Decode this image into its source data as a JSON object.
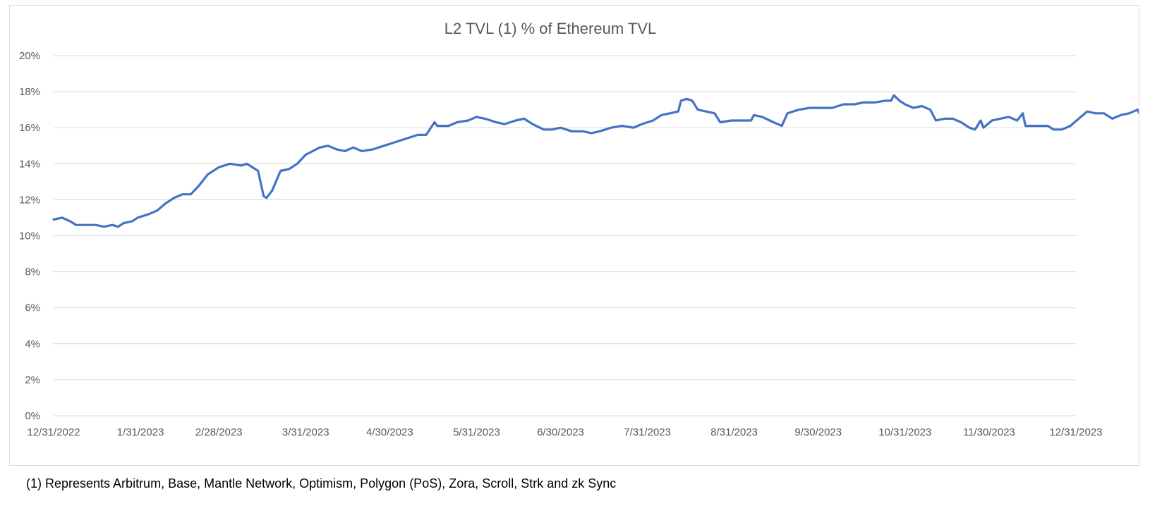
{
  "chart_data": {
    "type": "line",
    "title": "L2 TVL (1) % of Ethereum TVL",
    "xlabel": "",
    "ylabel": "",
    "ylim": [
      0,
      20
    ],
    "y_ticks": [
      "0%",
      "2%",
      "4%",
      "6%",
      "8%",
      "10%",
      "12%",
      "14%",
      "16%",
      "18%",
      "20%"
    ],
    "x_ticks": [
      "12/31/2022",
      "1/31/2023",
      "2/28/2023",
      "3/31/2023",
      "4/30/2023",
      "5/31/2023",
      "6/30/2023",
      "7/31/2023",
      "8/31/2023",
      "9/30/2023",
      "10/31/2023",
      "11/30/2023",
      "12/31/2023"
    ],
    "x_tick_day_offsets": [
      0,
      31,
      59,
      90,
      120,
      151,
      181,
      212,
      243,
      273,
      304,
      334,
      365
    ],
    "grid": true,
    "legend": "none",
    "series_color": "#4472c4",
    "series": [
      {
        "points": [
          [
            "12/31/2022",
            10.9
          ],
          [
            "1/3/2023",
            11.0
          ],
          [
            "1/6/2023",
            10.8
          ],
          [
            "1/8/2023",
            10.6
          ],
          [
            "1/12/2023",
            10.6
          ],
          [
            "1/15/2023",
            10.6
          ],
          [
            "1/18/2023",
            10.5
          ],
          [
            "1/21/2023",
            10.6
          ],
          [
            "1/23/2023",
            10.5
          ],
          [
            "1/25/2023",
            10.7
          ],
          [
            "1/28/2023",
            10.8
          ],
          [
            "1/30/2023",
            11.0
          ],
          [
            "2/3/2023",
            11.2
          ],
          [
            "2/6/2023",
            11.4
          ],
          [
            "2/9/2023",
            11.8
          ],
          [
            "2/12/2023",
            12.1
          ],
          [
            "2/15/2023",
            12.3
          ],
          [
            "2/18/2023",
            12.3
          ],
          [
            "2/21/2023",
            12.8
          ],
          [
            "2/24/2023",
            13.4
          ],
          [
            "2/28/2023",
            13.8
          ],
          [
            "3/4/2023",
            14.0
          ],
          [
            "3/8/2023",
            13.9
          ],
          [
            "3/10/2023",
            14.0
          ],
          [
            "3/14/2023",
            13.6
          ],
          [
            "3/16/2023",
            12.2
          ],
          [
            "3/17/2023",
            12.1
          ],
          [
            "3/19/2023",
            12.5
          ],
          [
            "3/22/2023",
            13.6
          ],
          [
            "3/25/2023",
            13.7
          ],
          [
            "3/28/2023",
            14.0
          ],
          [
            "3/31/2023",
            14.5
          ],
          [
            "4/5/2023",
            14.9
          ],
          [
            "4/8/2023",
            15.0
          ],
          [
            "4/11/2023",
            14.8
          ],
          [
            "4/14/2023",
            14.7
          ],
          [
            "4/17/2023",
            14.9
          ],
          [
            "4/20/2023",
            14.7
          ],
          [
            "4/24/2023",
            14.8
          ],
          [
            "4/28/2023",
            15.0
          ],
          [
            "5/2/2023",
            15.2
          ],
          [
            "5/6/2023",
            15.4
          ],
          [
            "5/10/2023",
            15.6
          ],
          [
            "5/13/2023",
            15.6
          ],
          [
            "5/16/2023",
            16.3
          ],
          [
            "5/17/2023",
            16.1
          ],
          [
            "5/21/2023",
            16.1
          ],
          [
            "5/24/2023",
            16.3
          ],
          [
            "5/28/2023",
            16.4
          ],
          [
            "5/31/2023",
            16.6
          ],
          [
            "6/3/2023",
            16.5
          ],
          [
            "6/7/2023",
            16.3
          ],
          [
            "6/10/2023",
            16.2
          ],
          [
            "6/14/2023",
            16.4
          ],
          [
            "6/17/2023",
            16.5
          ],
          [
            "6/20/2023",
            16.2
          ],
          [
            "6/24/2023",
            15.9
          ],
          [
            "6/27/2023",
            15.9
          ],
          [
            "6/30/2023",
            16.0
          ],
          [
            "7/4/2023",
            15.8
          ],
          [
            "7/8/2023",
            15.8
          ],
          [
            "7/11/2023",
            15.7
          ],
          [
            "7/14/2023",
            15.8
          ],
          [
            "7/18/2023",
            16.0
          ],
          [
            "7/22/2023",
            16.1
          ],
          [
            "7/26/2023",
            16.0
          ],
          [
            "7/29/2023",
            16.2
          ],
          [
            "8/2/2023",
            16.4
          ],
          [
            "8/5/2023",
            16.7
          ],
          [
            "8/8/2023",
            16.8
          ],
          [
            "8/11/2023",
            16.9
          ],
          [
            "8/12/2023",
            17.5
          ],
          [
            "8/14/2023",
            17.6
          ],
          [
            "8/16/2023",
            17.5
          ],
          [
            "8/18/2023",
            17.0
          ],
          [
            "8/21/2023",
            16.9
          ],
          [
            "8/24/2023",
            16.8
          ],
          [
            "8/26/2023",
            16.3
          ],
          [
            "8/30/2023",
            16.4
          ],
          [
            "9/2/2023",
            16.4
          ],
          [
            "9/6/2023",
            16.4
          ],
          [
            "9/7/2023",
            16.7
          ],
          [
            "9/10/2023",
            16.6
          ],
          [
            "9/14/2023",
            16.3
          ],
          [
            "9/17/2023",
            16.1
          ],
          [
            "9/19/2023",
            16.8
          ],
          [
            "9/23/2023",
            17.0
          ],
          [
            "9/27/2023",
            17.1
          ],
          [
            "10/1/2023",
            17.1
          ],
          [
            "10/5/2023",
            17.1
          ],
          [
            "10/9/2023",
            17.3
          ],
          [
            "10/13/2023",
            17.3
          ],
          [
            "10/16/2023",
            17.4
          ],
          [
            "10/20/2023",
            17.4
          ],
          [
            "10/24/2023",
            17.5
          ],
          [
            "10/26/2023",
            17.5
          ],
          [
            "10/27/2023",
            17.8
          ],
          [
            "10/29/2023",
            17.5
          ],
          [
            "10/31/2023",
            17.3
          ],
          [
            "11/3/2023",
            17.1
          ],
          [
            "11/6/2023",
            17.2
          ],
          [
            "11/9/2023",
            17.0
          ],
          [
            "11/11/2023",
            16.4
          ],
          [
            "11/14/2023",
            16.5
          ],
          [
            "11/17/2023",
            16.5
          ],
          [
            "11/20/2023",
            16.3
          ],
          [
            "11/23/2023",
            16.0
          ],
          [
            "11/25/2023",
            15.9
          ],
          [
            "11/27/2023",
            16.4
          ],
          [
            "11/28/2023",
            16.0
          ],
          [
            "12/1/2023",
            16.4
          ],
          [
            "12/4/2023",
            16.5
          ],
          [
            "12/7/2023",
            16.6
          ],
          [
            "12/10/2023",
            16.4
          ],
          [
            "12/12/2023",
            16.8
          ],
          [
            "12/13/2023",
            16.1
          ],
          [
            "12/17/2023",
            16.1
          ],
          [
            "12/21/2023",
            16.1
          ],
          [
            "12/23/2023",
            15.9
          ],
          [
            "12/26/2023",
            15.9
          ],
          [
            "12/29/2023",
            16.1
          ],
          [
            "1/1/2024",
            16.5
          ],
          [
            "1/4/2024",
            16.9
          ],
          [
            "1/7/2024",
            16.8
          ],
          [
            "1/10/2024",
            16.8
          ],
          [
            "1/13/2024",
            16.5
          ],
          [
            "1/16/2024",
            16.7
          ],
          [
            "1/19/2024",
            16.8
          ],
          [
            "1/22/2024",
            17.0
          ],
          [
            "1/23/2024",
            16.7
          ],
          [
            "1/27/2024",
            16.8
          ]
        ]
      }
    ]
  },
  "footnote": "(1) Represents Arbitrum, Base, Mantle Network, Optimism, Polygon (PoS), Zora, Scroll, Strk and zk Sync"
}
